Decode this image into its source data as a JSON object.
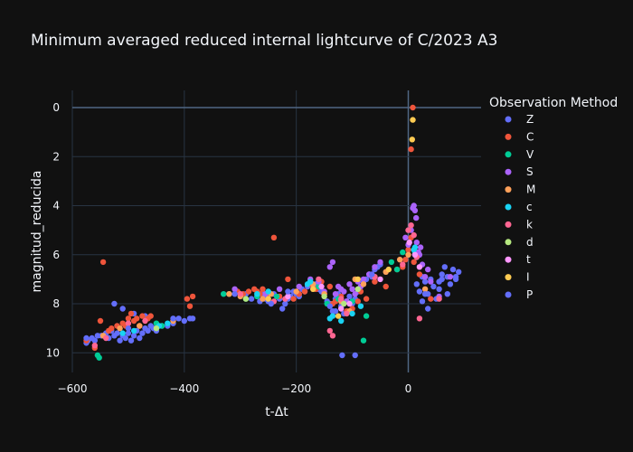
{
  "chart_data": {
    "type": "scatter",
    "title": "Minimum averaged reduced internal lightcurve of C/2023 A3",
    "xlabel": "t-Δt",
    "ylabel": "magnitud_reducida",
    "xlim": [
      -600,
      130
    ],
    "ylim": [
      10.8,
      -0.7
    ],
    "y_reversed": true,
    "grid": true,
    "x_ticks": [
      -600,
      -400,
      -200,
      0
    ],
    "y_ticks": [
      0,
      2,
      4,
      6,
      8,
      10
    ],
    "legend_title": "Observation Method",
    "legend_position": "right",
    "series": [
      {
        "name": "Z",
        "color": "#636efa",
        "points": [
          [
            -575,
            9.6
          ],
          [
            -572,
            9.5
          ],
          [
            -565,
            9.4
          ],
          [
            -560,
            9.5
          ],
          [
            -555,
            9.3
          ],
          [
            -548,
            9.3
          ],
          [
            -540,
            9.2
          ],
          [
            -535,
            9.4
          ],
          [
            -530,
            9.1
          ],
          [
            -525,
            9.3
          ],
          [
            -520,
            9.2
          ],
          [
            -515,
            9.5
          ],
          [
            -510,
            9.3
          ],
          [
            -505,
            9.4
          ],
          [
            -500,
            9.2
          ],
          [
            -495,
            9.5
          ],
          [
            -490,
            9.3
          ],
          [
            -485,
            9.1
          ],
          [
            -480,
            9.4
          ],
          [
            -475,
            9.2
          ],
          [
            -470,
            9.0
          ],
          [
            -465,
            9.1
          ],
          [
            -460,
            8.9
          ],
          [
            -455,
            9.0
          ],
          [
            -450,
            9.1
          ],
          [
            -440,
            8.9
          ],
          [
            -430,
            8.9
          ],
          [
            -420,
            8.8
          ],
          [
            -410,
            8.6
          ],
          [
            -400,
            8.7
          ],
          [
            -390,
            8.6
          ],
          [
            -385,
            8.6
          ],
          [
            -525,
            8.0
          ],
          [
            -510,
            8.2
          ],
          [
            -490,
            8.4
          ],
          [
            -470,
            8.5
          ],
          [
            -290,
            7.6
          ],
          [
            -280,
            7.8
          ],
          [
            -270,
            7.7
          ],
          [
            -265,
            7.9
          ],
          [
            -260,
            7.6
          ],
          [
            -255,
            7.8
          ],
          [
            -250,
            7.9
          ],
          [
            -240,
            7.6
          ],
          [
            -230,
            7.8
          ],
          [
            -225,
            8.2
          ],
          [
            -220,
            8.0
          ],
          [
            -215,
            7.8
          ],
          [
            -210,
            7.7
          ],
          [
            -205,
            7.5
          ],
          [
            -200,
            7.6
          ],
          [
            -195,
            7.7
          ],
          [
            -190,
            7.4
          ],
          [
            -185,
            7.5
          ],
          [
            -180,
            7.3
          ],
          [
            -175,
            7.1
          ],
          [
            -170,
            7.3
          ],
          [
            -165,
            7.2
          ],
          [
            -160,
            7.4
          ],
          [
            -155,
            7.5
          ],
          [
            -150,
            7.7
          ],
          [
            -145,
            7.9
          ],
          [
            -140,
            8.0
          ],
          [
            -135,
            8.3
          ],
          [
            -130,
            7.8
          ],
          [
            -125,
            7.6
          ],
          [
            -120,
            8.1
          ],
          [
            -115,
            8.4
          ],
          [
            -110,
            7.9
          ],
          [
            -105,
            7.7
          ],
          [
            -100,
            8.0
          ],
          [
            -95,
            7.8
          ],
          [
            -90,
            7.5
          ],
          [
            -85,
            7.3
          ],
          [
            -80,
            7.1
          ],
          [
            -75,
            7.0
          ],
          [
            -70,
            6.8
          ],
          [
            -65,
            6.9
          ],
          [
            -60,
            6.6
          ],
          [
            -55,
            6.5
          ],
          [
            -50,
            6.4
          ],
          [
            -118,
            10.1
          ],
          [
            -95,
            10.1
          ],
          [
            15,
            7.2
          ],
          [
            20,
            7.5
          ],
          [
            25,
            6.9
          ],
          [
            30,
            7.1
          ],
          [
            35,
            7.6
          ],
          [
            40,
            7.0
          ],
          [
            45,
            7.3
          ],
          [
            50,
            7.8
          ],
          [
            55,
            7.1
          ],
          [
            60,
            6.8
          ],
          [
            65,
            6.5
          ],
          [
            70,
            6.9
          ],
          [
            75,
            7.2
          ],
          [
            80,
            6.6
          ],
          [
            85,
            7.0
          ],
          [
            90,
            6.7
          ],
          [
            25,
            7.9
          ],
          [
            35,
            8.2
          ],
          [
            55,
            7.4
          ],
          [
            70,
            7.6
          ]
        ]
      },
      {
        "name": "C",
        "color": "#ef553b",
        "points": [
          [
            -575,
            9.5
          ],
          [
            -560,
            9.8
          ],
          [
            -550,
            8.7
          ],
          [
            -545,
            6.3
          ],
          [
            -535,
            9.1
          ],
          [
            -530,
            9.0
          ],
          [
            -520,
            8.9
          ],
          [
            -510,
            8.8
          ],
          [
            -505,
            8.9
          ],
          [
            -500,
            8.6
          ],
          [
            -495,
            8.4
          ],
          [
            -490,
            8.7
          ],
          [
            -485,
            8.6
          ],
          [
            -480,
            8.9
          ],
          [
            -475,
            8.5
          ],
          [
            -465,
            8.6
          ],
          [
            -460,
            8.5
          ],
          [
            -395,
            7.8
          ],
          [
            -390,
            8.1
          ],
          [
            -385,
            7.7
          ],
          [
            -305,
            7.5
          ],
          [
            -295,
            7.6
          ],
          [
            -285,
            7.5
          ],
          [
            -275,
            7.4
          ],
          [
            -270,
            7.5
          ],
          [
            -265,
            7.6
          ],
          [
            -260,
            7.4
          ],
          [
            -250,
            7.6
          ],
          [
            -240,
            5.3
          ],
          [
            -230,
            7.7
          ],
          [
            -215,
            7.0
          ],
          [
            -205,
            7.8
          ],
          [
            -195,
            7.6
          ],
          [
            -185,
            7.5
          ],
          [
            -175,
            7.2
          ],
          [
            -165,
            7.4
          ],
          [
            -155,
            7.1
          ],
          [
            -150,
            7.6
          ],
          [
            -140,
            7.3
          ],
          [
            -135,
            8.0
          ],
          [
            -130,
            7.9
          ],
          [
            -120,
            7.7
          ],
          [
            -110,
            8.3
          ],
          [
            -100,
            8.2
          ],
          [
            -90,
            7.9
          ],
          [
            -85,
            7.5
          ],
          [
            -75,
            7.8
          ],
          [
            -60,
            7.1
          ],
          [
            -40,
            7.3
          ],
          [
            -20,
            6.6
          ],
          [
            -10,
            6.5
          ],
          [
            -5,
            6.2
          ],
          [
            0,
            5.8
          ],
          [
            5,
            5.3
          ],
          [
            10,
            6.3
          ],
          [
            15,
            5.9
          ],
          [
            8,
            0.0
          ],
          [
            5,
            1.7
          ],
          [
            20,
            6.8
          ],
          [
            40,
            7.8
          ]
        ]
      },
      {
        "name": "V",
        "color": "#00cc96",
        "points": [
          [
            -555,
            10.1
          ],
          [
            -552,
            10.2
          ],
          [
            -450,
            8.8
          ],
          [
            -440,
            8.9
          ],
          [
            -330,
            7.6
          ],
          [
            -320,
            7.6
          ],
          [
            -290,
            7.8
          ],
          [
            -270,
            7.7
          ],
          [
            -235,
            7.7
          ],
          [
            -160,
            7.3
          ],
          [
            -145,
            8.0
          ],
          [
            -125,
            7.8
          ],
          [
            -100,
            7.9
          ],
          [
            -80,
            9.5
          ],
          [
            -75,
            8.5
          ],
          [
            -30,
            6.3
          ],
          [
            -20,
            6.6
          ],
          [
            -10,
            5.9
          ],
          [
            12,
            5.9
          ],
          [
            15,
            6.1
          ]
        ]
      },
      {
        "name": "S",
        "color": "#ab63fa",
        "points": [
          [
            -310,
            7.4
          ],
          [
            -255,
            7.6
          ],
          [
            -230,
            7.4
          ],
          [
            -195,
            7.3
          ],
          [
            -175,
            7.0
          ],
          [
            -160,
            7.1
          ],
          [
            -150,
            7.5
          ],
          [
            -140,
            6.5
          ],
          [
            -135,
            6.3
          ],
          [
            -130,
            7.6
          ],
          [
            -125,
            7.3
          ],
          [
            -120,
            7.4
          ],
          [
            -115,
            7.5
          ],
          [
            -110,
            7.9
          ],
          [
            -105,
            7.2
          ],
          [
            -100,
            7.4
          ],
          [
            -95,
            7.6
          ],
          [
            -90,
            7.1
          ],
          [
            -85,
            7.3
          ],
          [
            -80,
            7.0
          ],
          [
            -70,
            6.8
          ],
          [
            -60,
            6.5
          ],
          [
            -50,
            6.3
          ],
          [
            -5,
            5.3
          ],
          [
            0,
            5.6
          ],
          [
            5,
            5.0
          ],
          [
            8,
            4.1
          ],
          [
            10,
            4.0
          ],
          [
            12,
            4.2
          ],
          [
            14,
            4.5
          ],
          [
            15,
            5.5
          ],
          [
            18,
            5.9
          ],
          [
            20,
            6.0
          ],
          [
            22,
            5.7
          ],
          [
            25,
            6.4
          ],
          [
            30,
            6.9
          ],
          [
            35,
            6.6
          ],
          [
            40,
            7.1
          ],
          [
            55,
            7.7
          ],
          [
            75,
            6.9
          ]
        ]
      },
      {
        "name": "M",
        "color": "#ffa15a",
        "points": [
          [
            -545,
            9.3
          ],
          [
            -515,
            9.0
          ],
          [
            -480,
            8.9
          ],
          [
            -420,
            8.7
          ],
          [
            -320,
            7.6
          ],
          [
            -300,
            7.7
          ],
          [
            -260,
            7.8
          ],
          [
            -245,
            7.6
          ],
          [
            -200,
            7.5
          ],
          [
            -170,
            7.2
          ],
          [
            -150,
            7.6
          ],
          [
            -120,
            7.9
          ],
          [
            -105,
            8.3
          ],
          [
            -95,
            7.0
          ],
          [
            -80,
            7.2
          ],
          [
            -60,
            6.9
          ],
          [
            -40,
            6.7
          ],
          [
            -15,
            6.2
          ],
          [
            0,
            6.0
          ],
          [
            30,
            7.4
          ]
        ]
      },
      {
        "name": "c",
        "color": "#19d3f3",
        "points": [
          [
            -510,
            9.2
          ],
          [
            -490,
            9.1
          ],
          [
            -445,
            8.9
          ],
          [
            -430,
            8.8
          ],
          [
            -270,
            7.6
          ],
          [
            -250,
            7.5
          ],
          [
            -180,
            7.2
          ],
          [
            -175,
            7.1
          ],
          [
            -140,
            8.6
          ],
          [
            -135,
            8.5
          ],
          [
            -120,
            8.7
          ],
          [
            -100,
            8.4
          ],
          [
            -85,
            8.1
          ],
          [
            10,
            5.8
          ],
          [
            12,
            5.7
          ]
        ]
      },
      {
        "name": "k",
        "color": "#ff6692",
        "points": [
          [
            -560,
            9.7
          ],
          [
            -540,
            9.4
          ],
          [
            -500,
            8.8
          ],
          [
            -470,
            8.7
          ],
          [
            -300,
            7.6
          ],
          [
            -240,
            7.9
          ],
          [
            -220,
            7.8
          ],
          [
            -160,
            7.0
          ],
          [
            -140,
            9.1
          ],
          [
            -135,
            9.3
          ],
          [
            -120,
            7.8
          ],
          [
            -110,
            8.4
          ],
          [
            -60,
            6.9
          ],
          [
            -10,
            6.4
          ],
          [
            0,
            5.0
          ],
          [
            5,
            4.8
          ],
          [
            10,
            5.2
          ],
          [
            15,
            6.1
          ],
          [
            20,
            8.6
          ],
          [
            55,
            7.8
          ]
        ]
      },
      {
        "name": "d",
        "color": "#b6e880",
        "points": [
          [
            -450,
            9.0
          ],
          [
            -290,
            7.8
          ],
          [
            -150,
            7.7
          ],
          [
            -115,
            8.0
          ],
          [
            -90,
            7.4
          ]
        ]
      },
      {
        "name": "t",
        "color": "#ff97ff",
        "points": [
          [
            -215,
            7.7
          ],
          [
            -155,
            7.3
          ],
          [
            -120,
            8.2
          ],
          [
            -105,
            8.0
          ],
          [
            -50,
            7.0
          ],
          [
            2,
            5.5
          ],
          [
            12,
            6.0
          ],
          [
            20,
            6.5
          ]
        ]
      },
      {
        "name": "I",
        "color": "#fecb52",
        "points": [
          [
            8,
            0.5
          ],
          [
            7,
            1.3
          ],
          [
            -250,
            7.8
          ],
          [
            -170,
            7.4
          ],
          [
            -125,
            8.5
          ],
          [
            -90,
            7.0
          ],
          [
            -35,
            6.6
          ]
        ]
      },
      {
        "name": "P",
        "color": "#636efa",
        "points": [
          [
            -575,
            9.4
          ],
          [
            -500,
            9.0
          ],
          [
            -420,
            8.6
          ],
          [
            -310,
            7.6
          ],
          [
            -245,
            8.0
          ],
          [
            -215,
            7.5
          ],
          [
            -140,
            8.1
          ],
          [
            -130,
            8.3
          ],
          [
            -65,
            6.8
          ],
          [
            30,
            7.6
          ],
          [
            60,
            7.0
          ],
          [
            85,
            6.9
          ]
        ]
      }
    ]
  }
}
